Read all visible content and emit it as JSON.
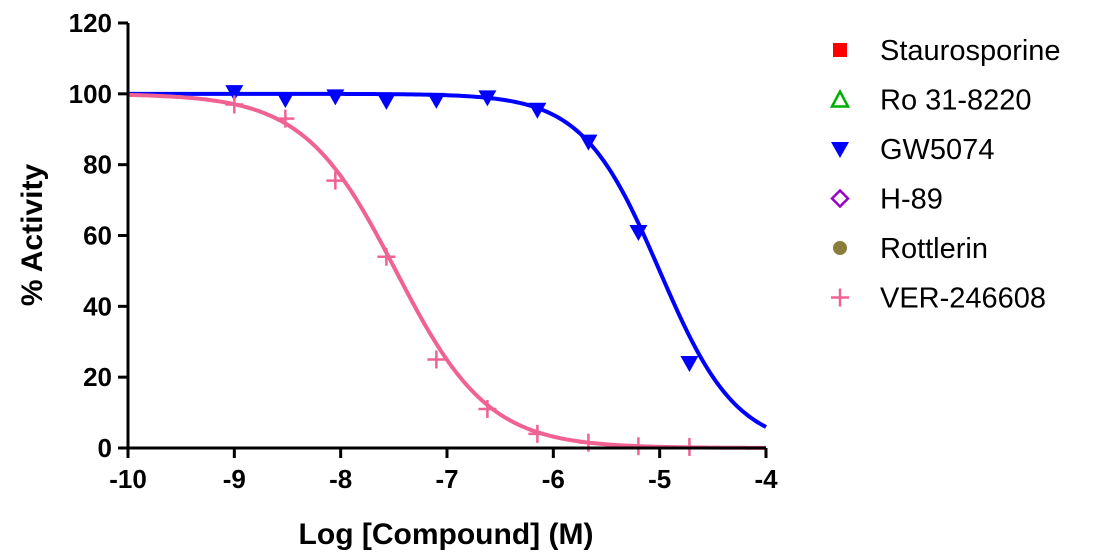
{
  "chart_data": {
    "type": "scatter",
    "xlabel": "Log [Compound] (M)",
    "ylabel": "% Activity",
    "xlim": [
      -10,
      -4
    ],
    "ylim": [
      0,
      120
    ],
    "x_ticks": [
      -10,
      -9,
      -8,
      -7,
      -6,
      -5,
      -4
    ],
    "y_ticks": [
      0,
      20,
      40,
      60,
      80,
      100,
      120
    ],
    "grid": false,
    "legend_position": "right",
    "series": [
      {
        "name": "Staurosporine",
        "marker": "square",
        "color": "#ff0000",
        "x": [],
        "y": []
      },
      {
        "name": "Ro 31-8220",
        "marker": "triangle-up-open",
        "color": "#00b000",
        "x": [],
        "y": []
      },
      {
        "name": "GW5074",
        "marker": "triangle-down",
        "color": "#0000ff",
        "x": [
          -9.0,
          -8.52,
          -8.05,
          -7.57,
          -7.1,
          -6.62,
          -6.15,
          -5.67,
          -5.2,
          -4.72
        ],
        "y": [
          100.5,
          98.5,
          99.3,
          98.0,
          98.3,
          99.0,
          95.5,
          86.5,
          61.0,
          24.0
        ],
        "fit": {
          "top": 100,
          "bottom": 0,
          "logIC50": -5.0,
          "hill": 1.2
        }
      },
      {
        "name": "H-89",
        "marker": "diamond-open",
        "color": "#9900cc",
        "x": [],
        "y": []
      },
      {
        "name": "Rottlerin",
        "marker": "circle",
        "color": "#8b7d3a",
        "x": [],
        "y": []
      },
      {
        "name": "VER-246608",
        "marker": "plus",
        "color": "#f06292",
        "x": [
          -9.0,
          -8.52,
          -8.05,
          -7.57,
          -7.1,
          -6.62,
          -6.15,
          -5.67,
          -5.2,
          -4.72
        ],
        "y": [
          97.0,
          93.0,
          75.5,
          54.0,
          25.0,
          11.0,
          4.0,
          1.5,
          0.5,
          0.3
        ],
        "fit": {
          "top": 100,
          "bottom": 0,
          "logIC50": -7.48,
          "hill": 1.0
        }
      }
    ]
  }
}
